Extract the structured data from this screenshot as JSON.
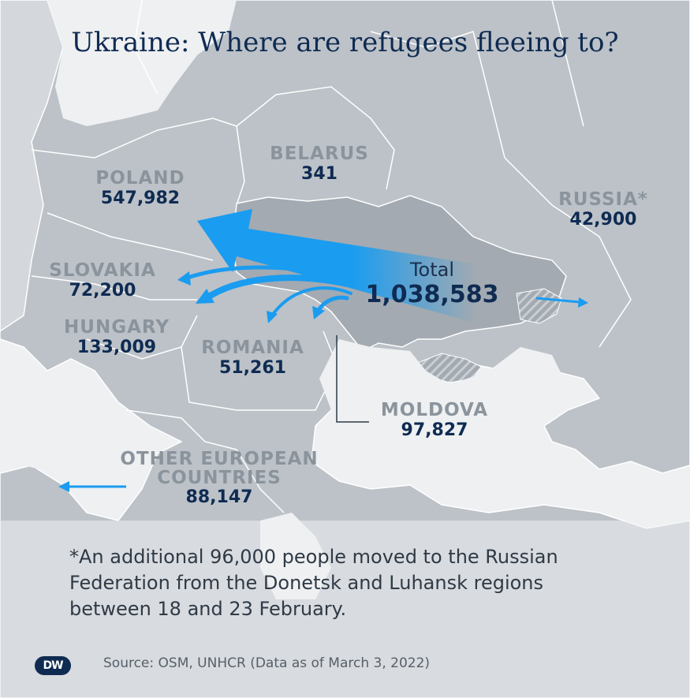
{
  "title": "Ukraine: Where are refugees fleeing to?",
  "total": {
    "label": "Total",
    "value": "1,038,583"
  },
  "countries": [
    {
      "key": "poland",
      "name": "POLAND",
      "value": "547,982"
    },
    {
      "key": "belarus",
      "name": "BELARUS",
      "value": "341"
    },
    {
      "key": "russia",
      "name": "RUSSIA*",
      "value": "42,900"
    },
    {
      "key": "slovakia",
      "name": "SLOVAKIA",
      "value": "72,200"
    },
    {
      "key": "hungary",
      "name": "HUNGARY",
      "value": "133,009"
    },
    {
      "key": "romania",
      "name": "ROMANIA",
      "value": "51,261"
    },
    {
      "key": "moldova",
      "name": "MOLDOVA",
      "value": "97,827"
    },
    {
      "key": "other",
      "name": "OTHER EUROPEAN\nCOUNTRIES",
      "value": "88,147"
    }
  ],
  "footnote": "*An additional 96,000 people moved to the Russian Federation from the Donetsk and Luhansk regions between 18 and 23 February.",
  "source": "Source: OSM, UNHCR (Data as of March 3, 2022)",
  "logo": "DW",
  "colors": {
    "arrow": "#1a9cf0",
    "ukraine": "#a3aab1",
    "land": "#bcc2c8",
    "sea": "#eef0f2",
    "title": "#0f2b52",
    "country_name": "#8b949c"
  }
}
